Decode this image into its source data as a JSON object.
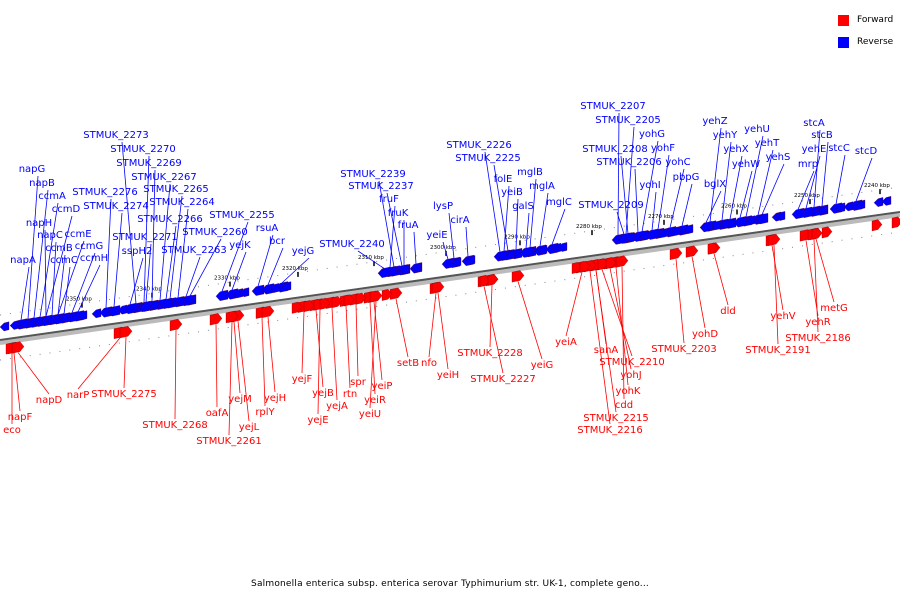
{
  "legend": {
    "forward_label": "Forward",
    "reverse_label": "Reverse",
    "forward_color": "#ff0000",
    "reverse_color": "#0000ff"
  },
  "caption": "Salmonella enterica subsp. enterica serovar Typhimurium str. UK-1, complete geno...",
  "ticks": [
    "2350 kbp",
    "2340 kbp",
    "2330 kbp",
    "2320 kbp",
    "2310 kbp",
    "2300 kbp",
    "2290 kbp",
    "2280 kbp",
    "2270 kbp",
    "2260 kbp",
    "2250 kbp",
    "2240 kbp"
  ],
  "reverse_genes": [
    "napG",
    "napB",
    "ccmA",
    "ccmD",
    "napH",
    "napC",
    "ccmE",
    "ccmB",
    "ccmC",
    "ccmG",
    "ccmH",
    "napA",
    "STMUK_2273",
    "STMUK_2270",
    "STMUK_2269",
    "STMUK_2267",
    "STMUK_2276",
    "STMUK_2265",
    "STMUK_2274",
    "STMUK_2264",
    "STMUK_2266",
    "STMUK_2271",
    "STMUK_2260",
    "sspH2",
    "STMUK_2263",
    "STMUK_2255",
    "yejK",
    "rsuA",
    "bcr",
    "yejG",
    "STMUK_2239",
    "STMUK_2237",
    "fruF",
    "fruK",
    "fruA",
    "STMUK_2240",
    "lysP",
    "cirA",
    "yeiE",
    "STMUK_2226",
    "STMUK_2225",
    "folE",
    "yeiB",
    "mglB",
    "galS",
    "mglA",
    "mglC",
    "STMUK_2207",
    "STMUK_2205",
    "yohG",
    "STMUK_2208",
    "STMUK_2206",
    "yohF",
    "yohC",
    "yohI",
    "pbpG",
    "STMUK_2209",
    "yehZ",
    "yehY",
    "yehU",
    "yehX",
    "yehT",
    "yehW",
    "yehS",
    "bglX",
    "stcA",
    "stcB",
    "yehE",
    "stcC",
    "mrp",
    "stcD"
  ],
  "forward_genes": [
    "napF",
    "eco",
    "napD",
    "narP",
    "STMUK_2275",
    "STMUK_2268",
    "oafA",
    "yejM",
    "yejL",
    "STMUK_2261",
    "rplY",
    "yejH",
    "yejF",
    "yejB",
    "yejE",
    "yejA",
    "rtn",
    "spr",
    "yeiP",
    "yeiR",
    "yeiU",
    "setB",
    "nfo",
    "yeiH",
    "STMUK_2228",
    "STMUK_2227",
    "yeiG",
    "yeiA",
    "sanA",
    "STMUK_2210",
    "yohJ",
    "yohK",
    "cdd",
    "STMUK_2215",
    "STMUK_2216",
    "yohD",
    "STMUK_2203",
    "dld",
    "yehV",
    "STMUK_2191",
    "yehR",
    "metG",
    "STMUK_2186"
  ]
}
